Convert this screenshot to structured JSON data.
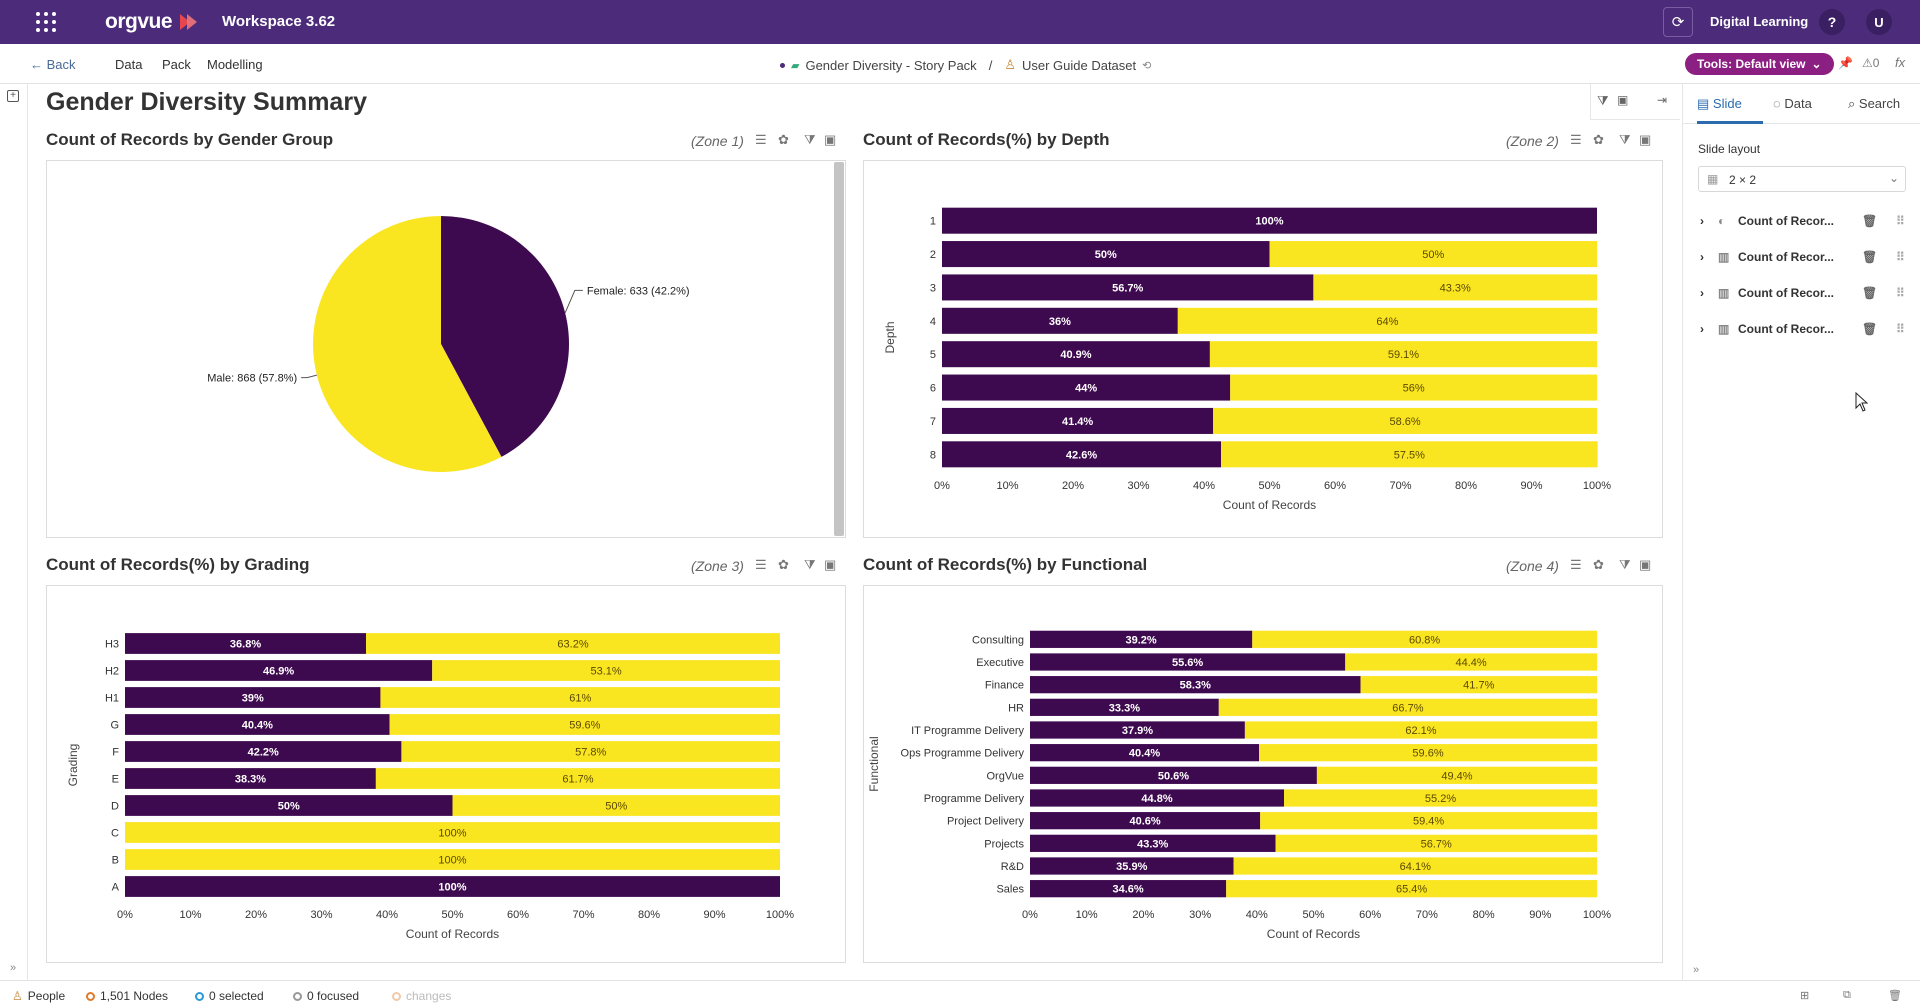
{
  "colors": {
    "purple": "#3e0a4f",
    "yellow": "#fae521",
    "brand": "#4b2b7a",
    "tools": "#8c1f82"
  },
  "topbar": {
    "logo": "orgvue",
    "workspace": "Workspace  3.62",
    "org": "Digital Learning",
    "help": "?",
    "user": "U"
  },
  "navbar": {
    "back": "Back",
    "items": [
      "Data",
      "Pack",
      "Modelling"
    ],
    "crumb_pack": "Gender Diversity - Story Pack",
    "crumb_sep": "/",
    "crumb_dataset": "User Guide Dataset",
    "tools": "Tools: Default view",
    "count": "0",
    "fx": "fx"
  },
  "slide": {
    "title": "Gender Diversity Summary"
  },
  "zones": [
    {
      "title": "Count of Records by Gender Group",
      "zone": "(Zone 1)"
    },
    {
      "title": "Count of Records(%) by Depth",
      "zone": "(Zone 2)"
    },
    {
      "title": "Count of Records(%) by Grading",
      "zone": "(Zone 3)"
    },
    {
      "title": "Count of Records(%) by Functional",
      "zone": "(Zone 4)"
    }
  ],
  "chart_data": [
    {
      "type": "pie",
      "title": "Count of Records by Gender Group",
      "slices": [
        {
          "name": "Female",
          "value": 633,
          "label": "Female: 633 (42.2%)",
          "color": "#3e0a4f"
        },
        {
          "name": "Male",
          "value": 868,
          "label": "Male: 868 (57.8%)",
          "color": "#fae521"
        }
      ]
    },
    {
      "type": "bar",
      "orientation": "horizontal-stacked-100",
      "title": "Count of Records(%) by Depth",
      "ylabel": "Depth",
      "xlabel": "Count of Records",
      "categories": [
        "1",
        "2",
        "3",
        "4",
        "5",
        "6",
        "7",
        "8"
      ],
      "series": [
        {
          "name": "Female",
          "values": [
            100,
            50,
            56.7,
            36,
            40.9,
            44,
            41.4,
            42.6
          ],
          "labels": [
            "100%",
            "50%",
            "56.7%",
            "36%",
            "40.9%",
            "44%",
            "41.4%",
            "42.6%"
          ]
        },
        {
          "name": "Male",
          "values": [
            0,
            50,
            43.3,
            64,
            59.1,
            56,
            58.6,
            57.5
          ],
          "labels": [
            "",
            "50%",
            "43.3%",
            "64%",
            "59.1%",
            "56%",
            "58.6%",
            "57.5%"
          ]
        }
      ],
      "xticks": [
        "0%",
        "10%",
        "20%",
        "30%",
        "40%",
        "50%",
        "60%",
        "70%",
        "80%",
        "90%",
        "100%"
      ],
      "xlim": [
        0,
        100
      ]
    },
    {
      "type": "bar",
      "orientation": "horizontal-stacked-100",
      "title": "Count of Records(%) by Grading",
      "ylabel": "Grading",
      "xlabel": "Count of Records",
      "categories": [
        "H3",
        "H2",
        "H1",
        "G",
        "F",
        "E",
        "D",
        "C",
        "B",
        "A"
      ],
      "series": [
        {
          "name": "Female",
          "values": [
            36.8,
            46.9,
            39,
            40.4,
            42.2,
            38.3,
            50,
            0,
            0,
            100
          ],
          "labels": [
            "36.8%",
            "46.9%",
            "39%",
            "40.4%",
            "42.2%",
            "38.3%",
            "50%",
            "",
            "",
            "100%"
          ]
        },
        {
          "name": "Male",
          "values": [
            63.2,
            53.1,
            61,
            59.6,
            57.8,
            61.7,
            50,
            100,
            100,
            0
          ],
          "labels": [
            "63.2%",
            "53.1%",
            "61%",
            "59.6%",
            "57.8%",
            "61.7%",
            "50%",
            "100%",
            "100%",
            ""
          ]
        }
      ],
      "xticks": [
        "0%",
        "10%",
        "20%",
        "30%",
        "40%",
        "50%",
        "60%",
        "70%",
        "80%",
        "90%",
        "100%"
      ],
      "xlim": [
        0,
        100
      ]
    },
    {
      "type": "bar",
      "orientation": "horizontal-stacked-100",
      "title": "Count of Records(%) by Functional",
      "ylabel": "Functional",
      "xlabel": "Count of Records",
      "categories": [
        "Consulting",
        "Executive",
        "Finance",
        "HR",
        "IT Programme Delivery",
        "Ops Programme Delivery",
        "OrgVue",
        "Programme Delivery",
        "Project Delivery",
        "Projects",
        "R&D",
        "Sales"
      ],
      "series": [
        {
          "name": "Female",
          "values": [
            39.2,
            55.6,
            58.3,
            33.3,
            37.9,
            40.4,
            50.6,
            44.8,
            40.6,
            43.3,
            35.9,
            34.6
          ],
          "labels": [
            "39.2%",
            "55.6%",
            "58.3%",
            "33.3%",
            "37.9%",
            "40.4%",
            "50.6%",
            "44.8%",
            "40.6%",
            "43.3%",
            "35.9%",
            "34.6%"
          ]
        },
        {
          "name": "Male",
          "values": [
            60.8,
            44.4,
            41.7,
            66.7,
            62.1,
            59.6,
            49.4,
            55.2,
            59.4,
            56.7,
            64.1,
            65.4
          ],
          "labels": [
            "60.8%",
            "44.4%",
            "41.7%",
            "66.7%",
            "62.1%",
            "59.6%",
            "49.4%",
            "55.2%",
            "59.4%",
            "56.7%",
            "64.1%",
            "65.4%"
          ]
        }
      ],
      "xticks": [
        "0%",
        "10%",
        "20%",
        "30%",
        "40%",
        "50%",
        "60%",
        "70%",
        "80%",
        "90%",
        "100%"
      ],
      "xlim": [
        0,
        100
      ]
    }
  ],
  "right_panel": {
    "tabs": [
      "Slide",
      "Data",
      "Search"
    ],
    "layout_label": "Slide layout",
    "layout_value": "2 × 2",
    "items": [
      "Count of Recor...",
      "Count of Recor...",
      "Count of Recor...",
      "Count of Recor..."
    ]
  },
  "statusbar": {
    "people": "People",
    "nodes": "1,501 Nodes",
    "selected": "0 selected",
    "focused": "0 focused",
    "changes": "changes"
  }
}
